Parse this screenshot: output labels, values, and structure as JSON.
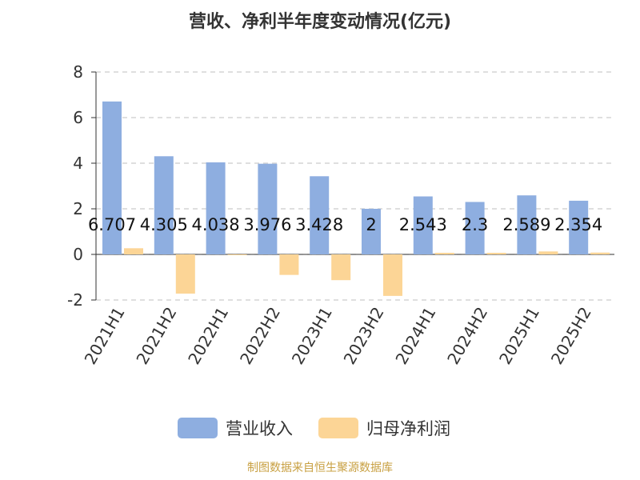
{
  "chart_data": {
    "type": "bar",
    "title": "营收、净利半年度变动情况(亿元)",
    "categories": [
      "2021H1",
      "2021H2",
      "2022H1",
      "2022H2",
      "2023H1",
      "2023H2",
      "2024H1",
      "2024H2",
      "2025H1",
      "2025H2"
    ],
    "series": [
      {
        "name": "营业收入",
        "color": "#8eaee0",
        "values": [
          6.707,
          4.305,
          4.038,
          3.976,
          3.428,
          2,
          2.543,
          2.3,
          2.589,
          2.354
        ],
        "data_labels": [
          "6.707",
          "4.305",
          "4.038",
          "3.976",
          "3.428",
          "2",
          "2.543",
          "2.3",
          "2.589",
          "2.354"
        ]
      },
      {
        "name": "归母净利润",
        "color": "#fcd596",
        "values": [
          0.27,
          -1.72,
          -0.03,
          -0.9,
          -1.13,
          -1.82,
          0.07,
          0.07,
          0.13,
          0.08
        ]
      }
    ],
    "ylim": [
      -2,
      8
    ],
    "yticks": [
      -2,
      0,
      2,
      4,
      6,
      8
    ],
    "grid": true,
    "legend_position": "bottom-center",
    "source_note": "制图数据来自恒生聚源数据库"
  }
}
